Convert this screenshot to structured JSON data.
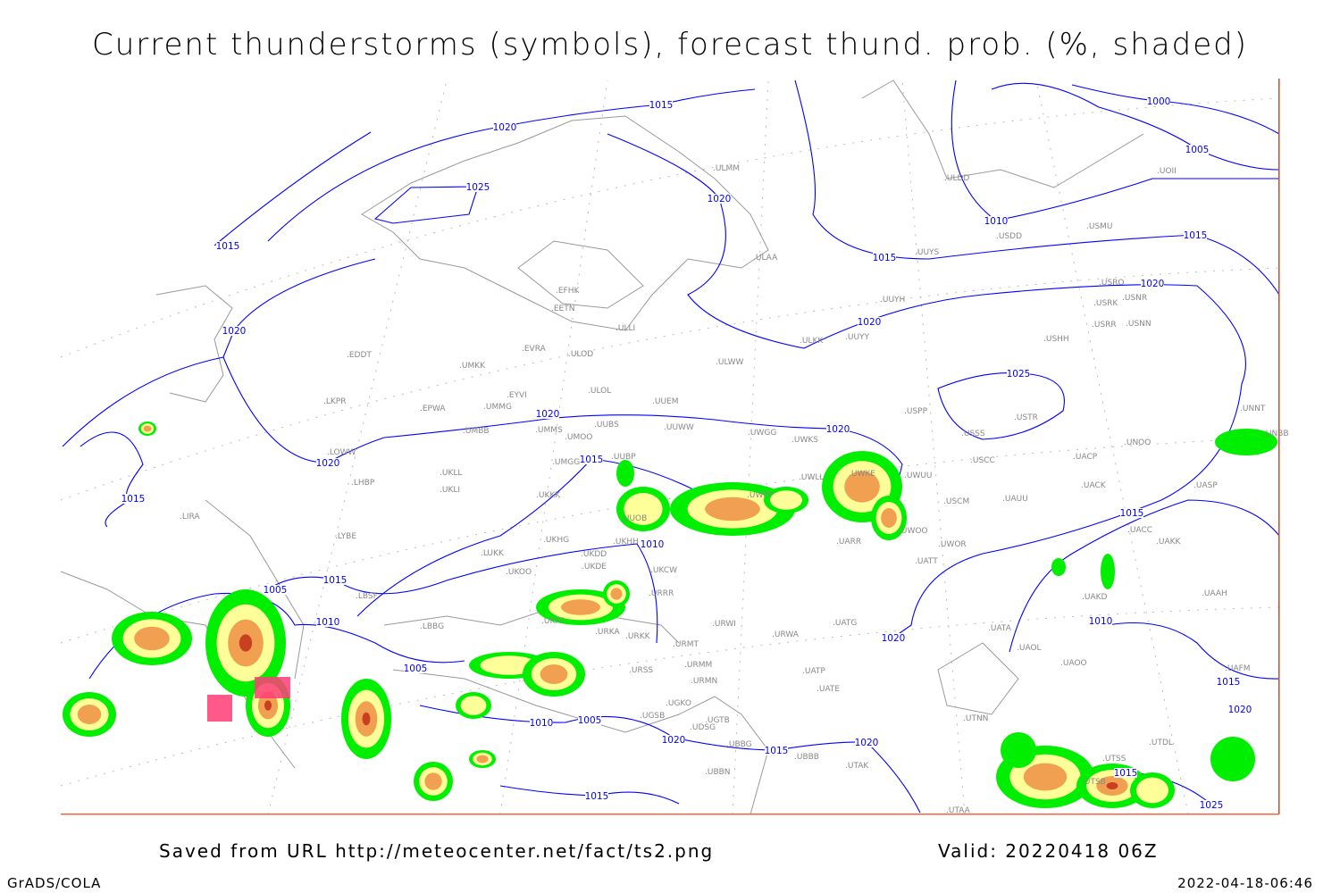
{
  "title": "Current thunderstorms (symbols), forecast thund. prob. (%, shaded)",
  "footer": {
    "saved": "Saved from URL http://meteocenter.net/fact/ts2.png",
    "valid": "Valid: 20220418 06Z",
    "software": "GrADS/COLA",
    "timestamp": "2022-04-18-06:46"
  },
  "colors": {
    "isobar": "#0000ff",
    "coastline": "#999999",
    "prob_low": "#00ee00",
    "prob_mid": "#ffff99",
    "prob_high": "#f0a050",
    "prob_very_high": "#c84020",
    "thunderstorm_symbol": "#ff3c78"
  },
  "map": {
    "stations": [
      "EFHK",
      "EETN",
      "EVRA",
      "ULOD",
      "EDDT",
      "UMKK",
      "ULOL",
      "EYVI",
      "LKPR",
      "EPWA",
      "UMMG",
      "UUEM",
      "UMMS",
      "UUBS",
      "UMOO",
      "UUWW",
      "UMBB",
      "LOWW",
      "UMGG",
      "UUBP",
      "UKLL",
      "LHBP",
      "UKLI",
      "UKKK",
      "UUOB",
      "LIRA",
      "LYBE",
      "UKHG",
      "UKDD",
      "UKHH",
      "LUKK",
      "UKOO",
      "UKDE",
      "LBSF",
      "UKCW",
      "URRR",
      "UKFF",
      "LBBG",
      "URKA",
      "URKK",
      "URMT",
      "URMM",
      "URMN",
      "URSS",
      "UGKO",
      "UGSB",
      "UGTB",
      "UDSG",
      "UBBG",
      "UBBB",
      "UBBN",
      "UWGG",
      "UWKS",
      "UWLL",
      "UWPP",
      "UWKE",
      "UWUU",
      "UWOO",
      "UARR",
      "URWI",
      "URWA",
      "UATG",
      "UATT",
      "UWOR",
      "USCM",
      "UAUU",
      "USCC",
      "USSS",
      "USTR",
      "USPP",
      "UACP",
      "UACK",
      "UASP",
      "UNOO",
      "UNNT",
      "UNBB",
      "UACC",
      "UAKK",
      "UAKD",
      "UAAH",
      "UATA",
      "UAOL",
      "UAOO",
      "UATE",
      "UATP",
      "UTNN",
      "UTAK",
      "UTAA",
      "UTSS",
      "UTDL",
      "UAFM",
      "UTSB",
      "ULMM",
      "ULDD",
      "UOII",
      "USDD",
      "USMU",
      "ULAA",
      "UUYS",
      "UUYH",
      "ULWW",
      "ULKK",
      "UUYY",
      "USRO",
      "USRK",
      "USNR",
      "USRR",
      "USNN",
      "USHH",
      "ULLI"
    ],
    "isobar_labels": [
      "1020",
      "1015",
      "1025",
      "1015",
      "1020",
      "1020",
      "1000",
      "1005",
      "1010",
      "1015",
      "1015",
      "1020",
      "1020",
      "1025",
      "1020",
      "1020",
      "1015",
      "1020",
      "1015",
      "1010",
      "1015",
      "1015",
      "1005",
      "1010",
      "1020",
      "1010",
      "1005",
      "1010",
      "1005",
      "1020",
      "1015",
      "1020",
      "1015",
      "1015",
      "1020",
      "1015",
      "1025"
    ]
  }
}
